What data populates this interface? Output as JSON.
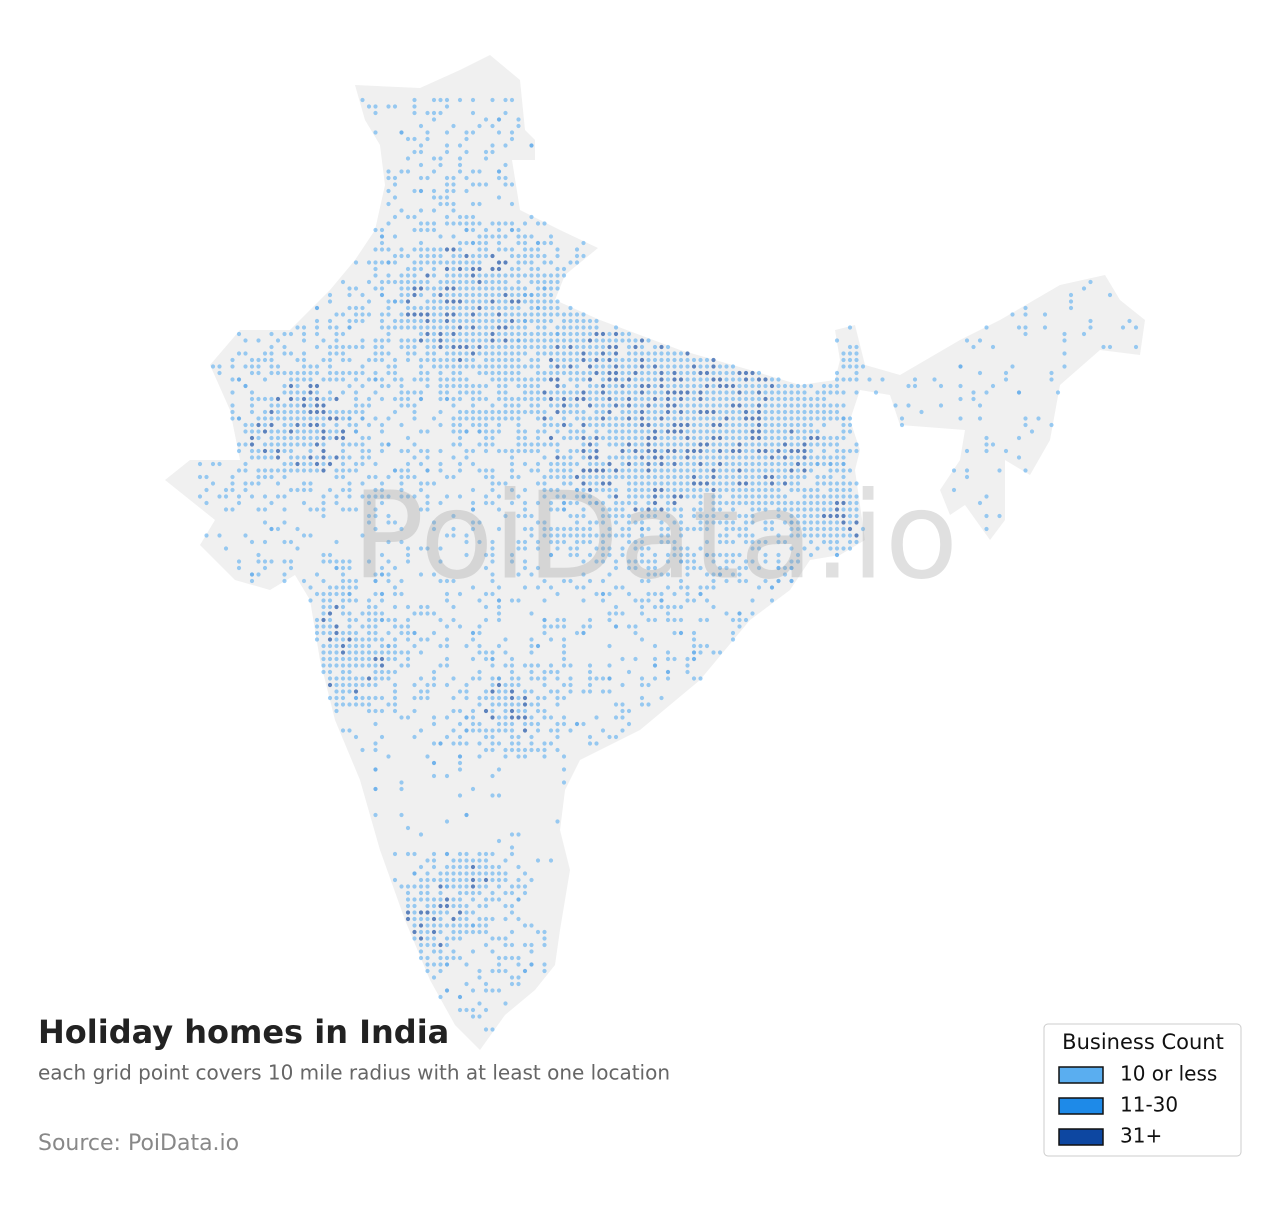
{
  "title": "Holiday homes in India",
  "subtitle": "each grid point covers 10 mile radius with at least one location",
  "source": "Source: PoiData.io",
  "watermark": "PoiData.io",
  "legend": {
    "title": "Business Count",
    "items": [
      {
        "label": "10 or less",
        "color": "#5aaef0"
      },
      {
        "label": "11-30",
        "color": "#1e8ae8"
      },
      {
        "label": "31+",
        "color": "#0d47a1"
      }
    ]
  }
}
